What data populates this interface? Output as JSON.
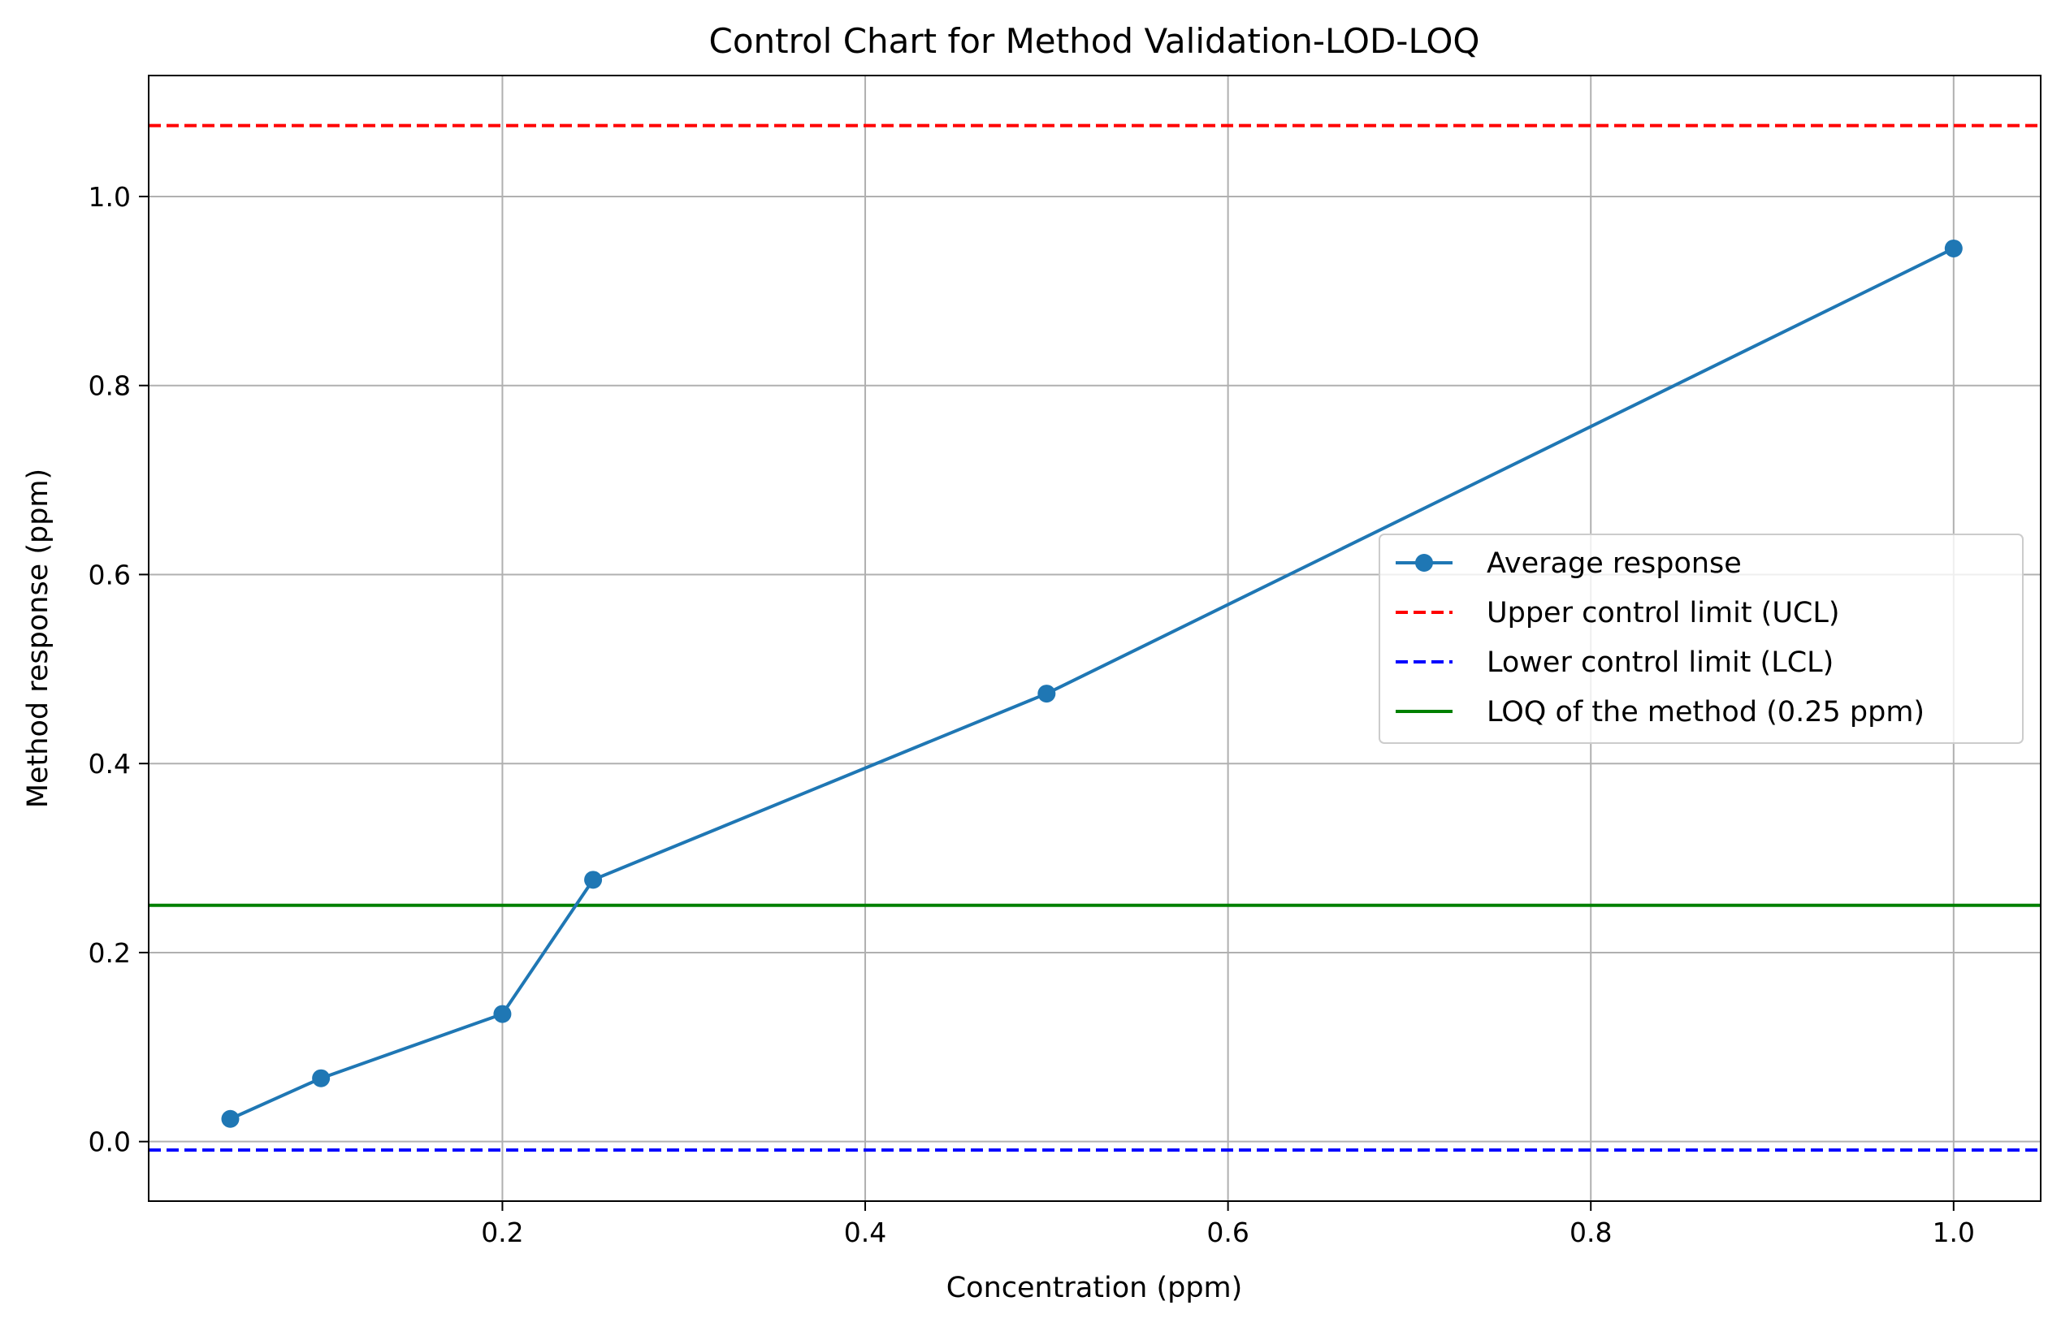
{
  "chart_data": {
    "type": "line",
    "title": "Control Chart for Method Validation-LOD-LOQ",
    "xlabel": "Concentration (ppm)",
    "ylabel": "Method response (ppm)",
    "xlim": [
      0.005,
      1.048
    ],
    "ylim": [
      -0.063,
      1.128
    ],
    "xticks": [
      0.2,
      0.4,
      0.6,
      0.8,
      1.0
    ],
    "xtick_labels": [
      "0.2",
      "0.4",
      "0.6",
      "0.8",
      "1.0"
    ],
    "yticks": [
      0.0,
      0.2,
      0.4,
      0.6,
      0.8,
      1.0
    ],
    "ytick_labels": [
      "0.0",
      "0.2",
      "0.4",
      "0.6",
      "0.8",
      "1.0"
    ],
    "grid": true,
    "legend_position": "center-right",
    "series": [
      {
        "name": "Average response",
        "color": "#1f77b4",
        "style": "solid-with-markers",
        "x": [
          0.05,
          0.1,
          0.2,
          0.25,
          0.5,
          1.0
        ],
        "y": [
          0.024,
          0.067,
          0.135,
          0.277,
          0.474,
          0.945
        ]
      }
    ],
    "reference_lines": [
      {
        "name": "Upper control limit (UCL)",
        "value": 1.075,
        "color": "#ff0000",
        "style": "dashed"
      },
      {
        "name": "Lower control limit (LCL)",
        "value": -0.009,
        "color": "#0000ff",
        "style": "dashed"
      },
      {
        "name": "LOQ of the method (0.25 ppm)",
        "value": 0.25,
        "color": "#008000",
        "style": "solid"
      }
    ]
  }
}
